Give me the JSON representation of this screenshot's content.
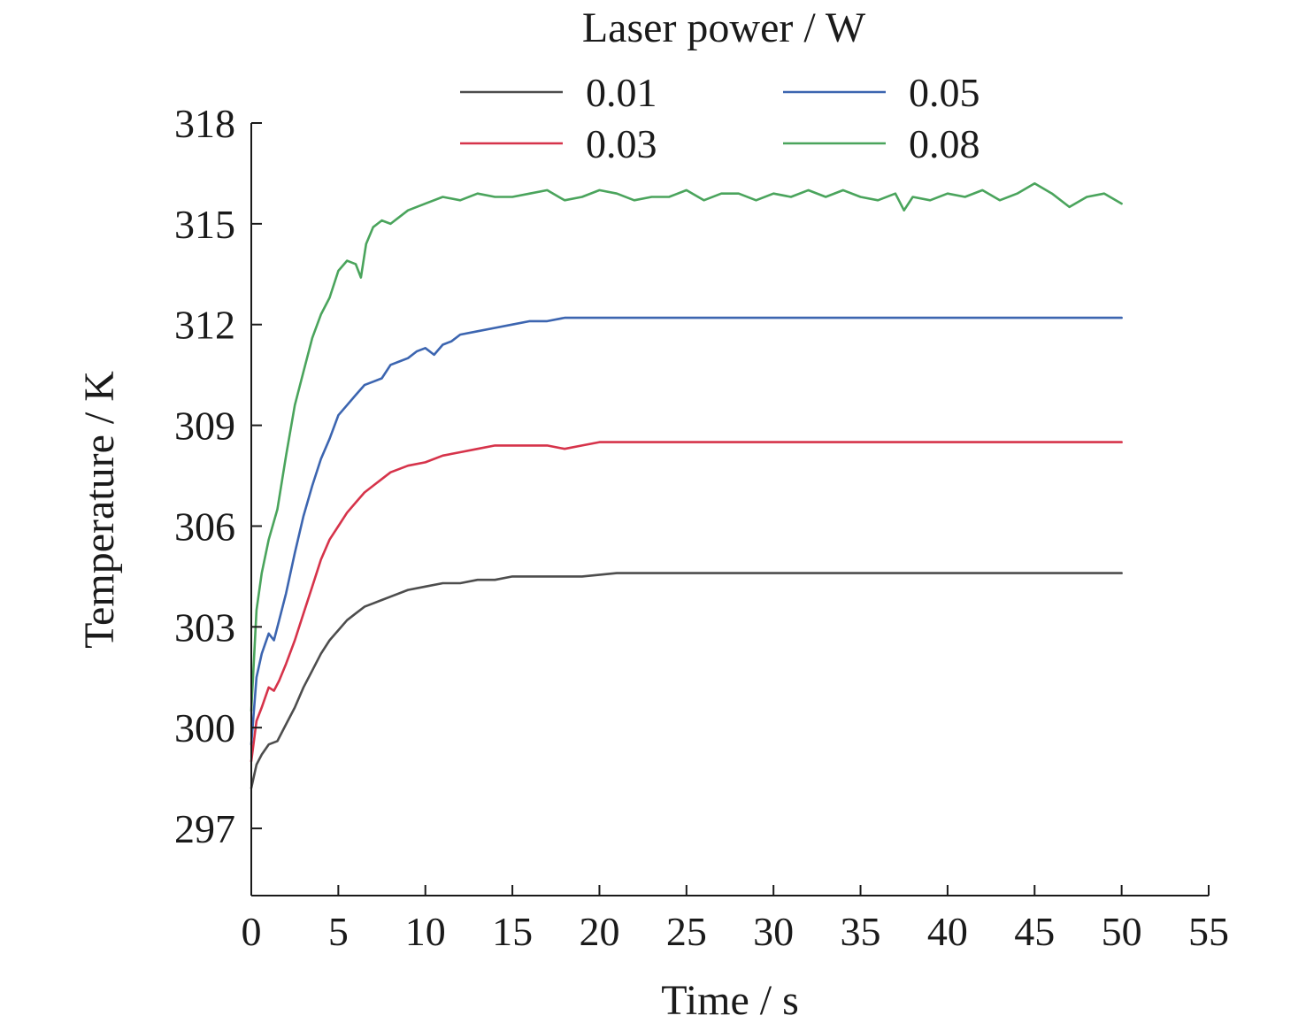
{
  "chart_data": {
    "type": "line",
    "legend_title": "Laser power / W",
    "legend_position": "top",
    "xlabel": "Time / s",
    "ylabel": "Temperature / K",
    "xlim": [
      0,
      55
    ],
    "ylim": [
      295,
      318
    ],
    "xticks": [
      0,
      5,
      10,
      15,
      20,
      25,
      30,
      35,
      40,
      45,
      50,
      55
    ],
    "yticks": [
      297,
      300,
      303,
      306,
      309,
      312,
      315,
      318
    ],
    "grid": false,
    "series": [
      {
        "name": "0.01",
        "color": "#4d4d4d",
        "x": [
          0,
          0.3,
          0.6,
          1.0,
          1.5,
          2.0,
          2.5,
          3.0,
          3.5,
          4.0,
          4.5,
          5.0,
          5.5,
          6.0,
          6.5,
          7.0,
          7.5,
          8.0,
          9.0,
          10.0,
          11.0,
          12.0,
          13.0,
          14.0,
          15.0,
          17.0,
          19.0,
          21.0,
          23.0,
          25.0,
          27.0,
          30.0,
          33.0,
          36.0,
          39.0,
          42.0,
          45.0,
          48.0,
          50.0
        ],
        "y": [
          298.2,
          298.9,
          299.2,
          299.5,
          299.6,
          300.1,
          300.6,
          301.2,
          301.7,
          302.2,
          302.6,
          302.9,
          303.2,
          303.4,
          303.6,
          303.7,
          303.8,
          303.9,
          304.1,
          304.2,
          304.3,
          304.3,
          304.4,
          304.4,
          304.5,
          304.5,
          304.5,
          304.6,
          304.6,
          304.6,
          304.6,
          304.6,
          304.6,
          304.6,
          304.6,
          304.6,
          304.6,
          304.6,
          304.6
        ]
      },
      {
        "name": "0.03",
        "color": "#d6334a",
        "x": [
          0,
          0.3,
          0.6,
          1.0,
          1.3,
          1.6,
          2.0,
          2.5,
          3.0,
          3.5,
          4.0,
          4.5,
          5.0,
          5.5,
          6.0,
          6.5,
          7.0,
          7.5,
          8.0,
          9.0,
          10.0,
          11.0,
          12.0,
          13.0,
          14.0,
          15.0,
          16.0,
          17.0,
          18.0,
          19.0,
          20.0,
          22.0,
          24.0,
          26.0,
          30.0,
          35.0,
          40.0,
          45.0,
          50.0
        ],
        "y": [
          299.0,
          300.2,
          300.6,
          301.2,
          301.1,
          301.4,
          301.9,
          302.6,
          303.4,
          304.2,
          305.0,
          305.6,
          306.0,
          306.4,
          306.7,
          307.0,
          307.2,
          307.4,
          307.6,
          307.8,
          307.9,
          308.1,
          308.2,
          308.3,
          308.4,
          308.4,
          308.4,
          308.4,
          308.3,
          308.4,
          308.5,
          308.5,
          308.5,
          308.5,
          308.5,
          308.5,
          308.5,
          308.5,
          308.5
        ]
      },
      {
        "name": "0.05",
        "color": "#3c65b0",
        "x": [
          0,
          0.3,
          0.6,
          1.0,
          1.3,
          1.6,
          2.0,
          2.5,
          3.0,
          3.5,
          4.0,
          4.5,
          5.0,
          5.5,
          6.0,
          6.5,
          7.0,
          7.5,
          8.0,
          8.5,
          9.0,
          9.5,
          10.0,
          10.5,
          11.0,
          11.5,
          12.0,
          13.0,
          14.0,
          15.0,
          16.0,
          17.0,
          18.0,
          20.0,
          22.0,
          25.0,
          30.0,
          35.0,
          40.0,
          45.0,
          50.0
        ],
        "y": [
          299.5,
          301.5,
          302.2,
          302.8,
          302.6,
          303.2,
          304.0,
          305.2,
          306.3,
          307.2,
          308.0,
          308.6,
          309.3,
          309.6,
          309.9,
          310.2,
          310.3,
          310.4,
          310.8,
          310.9,
          311.0,
          311.2,
          311.3,
          311.1,
          311.4,
          311.5,
          311.7,
          311.8,
          311.9,
          312.0,
          312.1,
          312.1,
          312.2,
          312.2,
          312.2,
          312.2,
          312.2,
          312.2,
          312.2,
          312.2,
          312.2
        ]
      },
      {
        "name": "0.08",
        "color": "#4aa45c",
        "x": [
          0,
          0.3,
          0.6,
          1.0,
          1.5,
          2.0,
          2.5,
          3.0,
          3.5,
          4.0,
          4.5,
          5.0,
          5.5,
          6.0,
          6.3,
          6.6,
          7.0,
          7.5,
          8.0,
          8.5,
          9.0,
          10.0,
          11.0,
          12.0,
          13.0,
          14.0,
          15.0,
          16.0,
          17.0,
          18.0,
          19.0,
          20.0,
          21.0,
          22.0,
          23.0,
          24.0,
          25.0,
          26.0,
          27.0,
          28.0,
          29.0,
          30.0,
          31.0,
          32.0,
          33.0,
          34.0,
          35.0,
          36.0,
          37.0,
          37.5,
          38.0,
          39.0,
          40.0,
          41.0,
          42.0,
          43.0,
          44.0,
          45.0,
          46.0,
          47.0,
          48.0,
          49.0,
          50.0
        ],
        "y": [
          300.5,
          303.5,
          304.6,
          305.6,
          306.5,
          308.1,
          309.6,
          310.6,
          311.6,
          312.3,
          312.8,
          313.6,
          313.9,
          313.8,
          313.4,
          314.4,
          314.9,
          315.1,
          315.0,
          315.2,
          315.4,
          315.6,
          315.8,
          315.7,
          315.9,
          315.8,
          315.8,
          315.9,
          316.0,
          315.7,
          315.8,
          316.0,
          315.9,
          315.7,
          315.8,
          315.8,
          316.0,
          315.7,
          315.9,
          315.9,
          315.7,
          315.9,
          315.8,
          316.0,
          315.8,
          316.0,
          315.8,
          315.7,
          315.9,
          315.4,
          315.8,
          315.7,
          315.9,
          315.8,
          316.0,
          315.7,
          315.9,
          316.2,
          315.9,
          315.5,
          315.8,
          315.9,
          315.6
        ]
      }
    ]
  }
}
